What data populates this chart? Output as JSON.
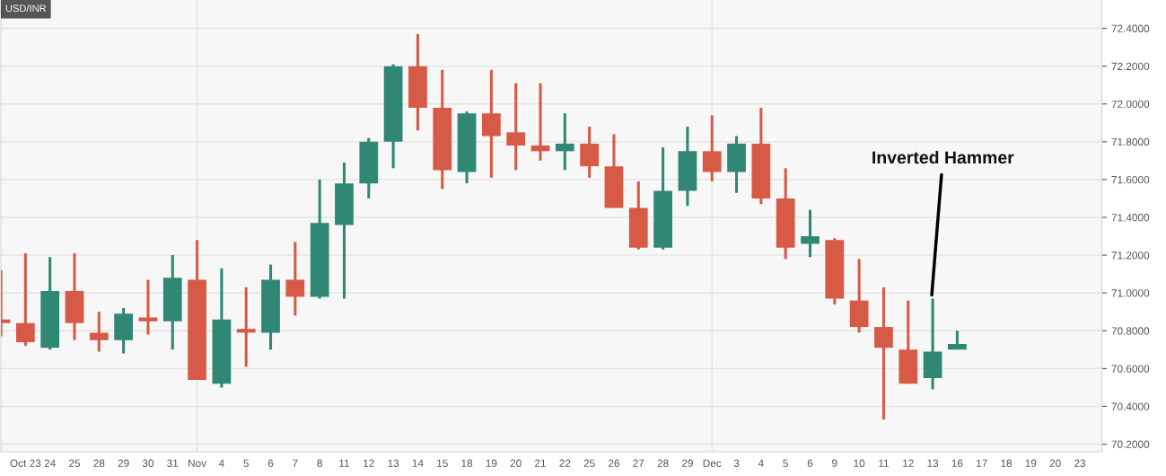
{
  "chart_data": {
    "type": "candlestick",
    "title": "USD/INR",
    "categories": [
      null,
      "Oct 23",
      "24",
      "25",
      "28",
      "29",
      "30",
      "31",
      "Nov",
      "4",
      "5",
      "6",
      "7",
      "8",
      "11",
      "12",
      "13",
      "14",
      "15",
      "18",
      "19",
      "20",
      "21",
      "22",
      "25",
      "26",
      "27",
      "28",
      "29",
      "Dec",
      "3",
      "4",
      "5",
      "6",
      "9",
      "10",
      "11",
      "12",
      "13",
      "16",
      "17",
      "18",
      "19",
      "20",
      "23"
    ],
    "ohlc": [
      [
        70.86,
        71.12,
        70.77,
        70.84
      ],
      [
        70.84,
        71.21,
        70.72,
        70.74
      ],
      [
        70.71,
        71.19,
        70.7,
        71.01
      ],
      [
        71.01,
        71.21,
        70.75,
        70.84
      ],
      [
        70.79,
        70.9,
        70.69,
        70.75
      ],
      [
        70.75,
        70.92,
        70.68,
        70.89
      ],
      [
        70.87,
        71.07,
        70.78,
        70.85
      ],
      [
        70.85,
        71.2,
        70.7,
        71.08
      ],
      [
        71.07,
        71.28,
        70.54,
        70.54
      ],
      [
        70.52,
        71.13,
        70.5,
        70.86
      ],
      [
        70.81,
        71.03,
        70.61,
        70.79
      ],
      [
        70.79,
        71.15,
        70.7,
        71.07
      ],
      [
        71.07,
        71.27,
        70.88,
        70.98
      ],
      [
        70.98,
        71.6,
        70.97,
        71.37
      ],
      [
        71.36,
        71.69,
        70.97,
        71.58
      ],
      [
        71.58,
        71.82,
        71.5,
        71.8
      ],
      [
        71.8,
        72.21,
        71.66,
        72.2
      ],
      [
        72.2,
        72.37,
        71.86,
        71.98
      ],
      [
        71.98,
        72.18,
        71.55,
        71.65
      ],
      [
        71.64,
        71.96,
        71.58,
        71.95
      ],
      [
        71.95,
        72.18,
        71.61,
        71.83
      ],
      [
        71.85,
        72.11,
        71.65,
        71.78
      ],
      [
        71.78,
        72.11,
        71.7,
        71.75
      ],
      [
        71.75,
        71.95,
        71.65,
        71.79
      ],
      [
        71.79,
        71.88,
        71.61,
        71.67
      ],
      [
        71.67,
        71.84,
        71.45,
        71.45
      ],
      [
        71.45,
        71.59,
        71.23,
        71.24
      ],
      [
        71.24,
        71.77,
        71.23,
        71.54
      ],
      [
        71.54,
        71.88,
        71.46,
        71.75
      ],
      [
        71.75,
        71.94,
        71.59,
        71.64
      ],
      [
        71.64,
        71.83,
        71.53,
        71.79
      ],
      [
        71.79,
        71.98,
        71.47,
        71.5
      ],
      [
        71.5,
        71.66,
        71.18,
        71.24
      ],
      [
        71.26,
        71.44,
        71.19,
        71.3
      ],
      [
        71.28,
        71.29,
        70.94,
        70.97
      ],
      [
        70.96,
        71.18,
        70.79,
        70.82
      ],
      [
        70.82,
        71.03,
        70.33,
        70.71
      ],
      [
        70.7,
        70.96,
        70.52,
        70.52
      ],
      [
        70.55,
        70.97,
        70.49,
        70.69
      ],
      [
        70.7,
        70.8,
        70.7,
        70.73
      ],
      null,
      null,
      null,
      null,
      null
    ],
    "colors": [
      "#d65a45",
      "#d65a45",
      "#308774",
      "#d65a45",
      "#d65a45",
      "#308774",
      "#d65a45",
      "#308774",
      "#d65a45",
      "#308774",
      "#d65a45",
      "#308774",
      "#d65a45",
      "#308774",
      "#308774",
      "#308774",
      "#308774",
      "#d65a45",
      "#d65a45",
      "#308774",
      "#d65a45",
      "#d65a45",
      "#d65a45",
      "#308774",
      "#d65a45",
      "#d65a45",
      "#d65a45",
      "#308774",
      "#308774",
      "#d65a45",
      "#308774",
      "#d65a45",
      "#d65a45",
      "#308774",
      "#d65a45",
      "#d65a45",
      "#d65a45",
      "#d65a45",
      "#308774",
      "#308774",
      null,
      null,
      null,
      null,
      null
    ],
    "ylim": [
      70.16,
      72.55
    ],
    "yticks": [
      {
        "value": 70.2,
        "label": "70.2000"
      },
      {
        "value": 70.4,
        "label": "70.4000"
      },
      {
        "value": 70.6,
        "label": "70.6000"
      },
      {
        "value": 70.8,
        "label": "70.8000"
      },
      {
        "value": 71.0,
        "label": "71.0000"
      },
      {
        "value": 71.2,
        "label": "71.2000"
      },
      {
        "value": 71.4,
        "label": "71.4000"
      },
      {
        "value": 71.6,
        "label": "71.6000"
      },
      {
        "value": 71.8,
        "label": "71.8000"
      },
      {
        "value": 72.0,
        "label": "72.0000"
      },
      {
        "value": 72.2,
        "label": "72.2000"
      },
      {
        "value": 72.4,
        "label": "72.4000"
      }
    ],
    "grid": "y",
    "ref_lines": [
      {
        "axis": "x",
        "value": "Nov",
        "color": "#e3e3e3"
      },
      {
        "axis": "x",
        "value": "Dec",
        "color": "#e3e3e3"
      }
    ],
    "annotations": [
      "Inverted Hammer"
    ]
  }
}
